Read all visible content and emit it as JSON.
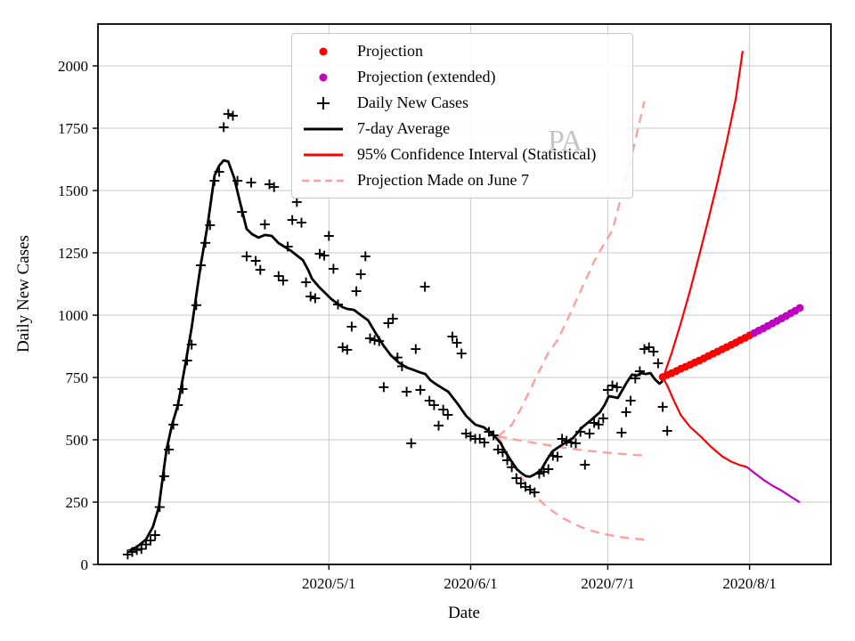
{
  "watermark": "PA",
  "colors": {
    "projection": "#ff0000",
    "projection_extended": "#bf00bf",
    "daily_cases": "#000000",
    "average": "#000000",
    "confidence_interval": "#ff0000",
    "june7_projection": "#ff9f9f",
    "grid": "#c9c9c9",
    "spine": "#000000",
    "watermark_gray": "#c6c6c6"
  },
  "axes": {
    "xlabel": "Date",
    "ylabel": "Daily New Cases",
    "x_origin_date": "2020-03-18",
    "xlim_days": [
      -6.5,
      153.8
    ],
    "ylim": [
      0,
      2168
    ],
    "x_ticks": [
      {
        "day": 44,
        "label": "2020/5/1"
      },
      {
        "day": 75,
        "label": "2020/6/1"
      },
      {
        "day": 105,
        "label": "2020/7/1"
      },
      {
        "day": 136,
        "label": "2020/8/1"
      }
    ],
    "y_ticks": [
      {
        "value": 0,
        "label": "0"
      },
      {
        "value": 250,
        "label": "250"
      },
      {
        "value": 500,
        "label": "500"
      },
      {
        "value": 750,
        "label": "750"
      },
      {
        "value": 1000,
        "label": "1000"
      },
      {
        "value": 1250,
        "label": "1250"
      },
      {
        "value": 1500,
        "label": "1500"
      },
      {
        "value": 1750,
        "label": "1750"
      },
      {
        "value": 2000,
        "label": "2000"
      }
    ]
  },
  "legend": {
    "items": [
      {
        "label": "Projection",
        "marker": "dot",
        "color": "#ff0000"
      },
      {
        "label": "Projection (extended)",
        "marker": "dot",
        "color": "#bf00bf"
      },
      {
        "label": "Daily New Cases",
        "marker": "plus",
        "color": "#000000"
      },
      {
        "label": "7-day Average",
        "marker": "line",
        "color": "#000000"
      },
      {
        "label": "95% Confidence Interval (Statistical)",
        "marker": "line",
        "color": "#ff0000"
      },
      {
        "label": "Projection Made on June 7",
        "marker": "dash",
        "color": "#ff9f9f"
      }
    ]
  },
  "chart_data": {
    "type": "line",
    "title": "",
    "xlabel": "Date",
    "ylabel": "Daily New Cases",
    "grid": true,
    "legend_position": "upper center",
    "x_unit": "days since 2020-03-18",
    "series": [
      {
        "name": "Projection Made on June 7 (upper band)",
        "style": "dashed",
        "color": "#ff9f9f",
        "width": 2.4,
        "points": [
          [
            81,
            514
          ],
          [
            84,
            560
          ],
          [
            86,
            625
          ],
          [
            88,
            700
          ],
          [
            90,
            775
          ],
          [
            92,
            850
          ],
          [
            94,
            900
          ],
          [
            96,
            975
          ],
          [
            98,
            1055
          ],
          [
            100,
            1135
          ],
          [
            102,
            1215
          ],
          [
            104,
            1280
          ],
          [
            106,
            1340
          ],
          [
            108,
            1480
          ],
          [
            110,
            1620
          ],
          [
            111.5,
            1740
          ],
          [
            113,
            1858
          ]
        ]
      },
      {
        "name": "Projection Made on June 7 (central)",
        "style": "dashed",
        "color": "#ff9f9f",
        "width": 2.4,
        "points": [
          [
            81,
            514
          ],
          [
            85,
            500
          ],
          [
            89,
            487
          ],
          [
            93,
            475
          ],
          [
            97,
            464
          ],
          [
            101,
            455
          ],
          [
            105,
            448
          ],
          [
            109,
            442
          ],
          [
            113.5,
            436
          ]
        ]
      },
      {
        "name": "Projection Made on June 7 (lower band)",
        "style": "dashed",
        "color": "#ff9f9f",
        "width": 2.4,
        "points": [
          [
            81,
            514
          ],
          [
            83,
            445
          ],
          [
            85,
            382
          ],
          [
            87,
            325
          ],
          [
            89,
            278
          ],
          [
            91,
            242
          ],
          [
            93,
            213
          ],
          [
            95,
            188
          ],
          [
            97,
            168
          ],
          [
            99,
            151
          ],
          [
            101,
            138
          ],
          [
            103,
            127
          ],
          [
            105,
            119
          ],
          [
            107,
            112
          ],
          [
            109,
            107
          ],
          [
            111,
            103
          ],
          [
            113,
            100
          ]
        ]
      },
      {
        "name": "95% Confidence Interval upper",
        "style": "line",
        "color": "#ff0000",
        "width": 2.2,
        "points": [
          [
            117.3,
            760
          ],
          [
            119,
            850
          ],
          [
            121,
            970
          ],
          [
            123,
            1100
          ],
          [
            125,
            1240
          ],
          [
            127,
            1385
          ],
          [
            129,
            1535
          ],
          [
            131,
            1695
          ],
          [
            133,
            1870
          ],
          [
            134.5,
            2060
          ]
        ]
      },
      {
        "name": "95% Confidence Interval lower",
        "style": "line",
        "color": "#ff0000",
        "width": 2.2,
        "points": [
          [
            117.3,
            740
          ],
          [
            118,
            718
          ],
          [
            119.5,
            655
          ],
          [
            121,
            598
          ],
          [
            123,
            552
          ],
          [
            125.5,
            510
          ],
          [
            127.5,
            473
          ],
          [
            130,
            434
          ],
          [
            132,
            412
          ],
          [
            134,
            398
          ],
          [
            135.4,
            391
          ]
        ]
      },
      {
        "name": "95% Confidence Interval lower (extended)",
        "style": "line",
        "color": "#bf00bf",
        "width": 2.2,
        "points": [
          [
            135.4,
            391
          ],
          [
            137,
            368
          ],
          [
            139,
            340
          ],
          [
            141,
            316
          ],
          [
            143,
            296
          ],
          [
            145,
            272
          ],
          [
            147,
            249
          ]
        ]
      },
      {
        "name": "7-day Average",
        "style": "line",
        "color": "#000000",
        "width": 2.8,
        "points": [
          [
            0.3,
            55
          ],
          [
            2,
            70
          ],
          [
            4,
            100
          ],
          [
            5.5,
            150
          ],
          [
            6.8,
            229
          ],
          [
            7.7,
            354
          ],
          [
            8.5,
            461
          ],
          [
            9.7,
            561
          ],
          [
            11,
            640
          ],
          [
            12.5,
            790
          ],
          [
            14,
            950
          ],
          [
            15,
            1080
          ],
          [
            16,
            1204
          ],
          [
            17.5,
            1364
          ],
          [
            19,
            1560
          ],
          [
            20,
            1600
          ],
          [
            21,
            1621
          ],
          [
            22,
            1616
          ],
          [
            23.3,
            1550
          ],
          [
            24.7,
            1443
          ],
          [
            26,
            1346
          ],
          [
            27.2,
            1325
          ],
          [
            28.6,
            1311
          ],
          [
            30,
            1322
          ],
          [
            31.5,
            1318
          ],
          [
            33,
            1289
          ],
          [
            35.8,
            1257
          ],
          [
            38.3,
            1221
          ],
          [
            39.5,
            1180
          ],
          [
            40.3,
            1146
          ],
          [
            42,
            1110
          ],
          [
            42.8,
            1096
          ],
          [
            44.5,
            1065
          ],
          [
            45.6,
            1050
          ],
          [
            47,
            1032
          ],
          [
            48,
            1025
          ],
          [
            49.5,
            1021
          ],
          [
            51,
            1000
          ],
          [
            52.6,
            979
          ],
          [
            54,
            935
          ],
          [
            55.9,
            879
          ],
          [
            57.5,
            840
          ],
          [
            59.2,
            811
          ],
          [
            61,
            790
          ],
          [
            62.3,
            782
          ],
          [
            64,
            770
          ],
          [
            65.1,
            764
          ],
          [
            66.2,
            739
          ],
          [
            67.6,
            721
          ],
          [
            69,
            705
          ],
          [
            70.1,
            693
          ],
          [
            72.1,
            646
          ],
          [
            74,
            596
          ],
          [
            76,
            561
          ],
          [
            77.9,
            550
          ],
          [
            79.9,
            521
          ],
          [
            81.6,
            486
          ],
          [
            82.6,
            450
          ],
          [
            83.8,
            418
          ],
          [
            85.1,
            382
          ],
          [
            86,
            368
          ],
          [
            87.1,
            354
          ],
          [
            88,
            352
          ],
          [
            89,
            361
          ],
          [
            90.4,
            379
          ],
          [
            91.6,
            418
          ],
          [
            92.9,
            454
          ],
          [
            94.3,
            471
          ],
          [
            95.5,
            486
          ],
          [
            97.4,
            507
          ],
          [
            99.4,
            550
          ],
          [
            101.3,
            579
          ],
          [
            103.3,
            611
          ],
          [
            104.3,
            640
          ],
          [
            105.2,
            675
          ],
          [
            106.2,
            672
          ],
          [
            107.2,
            668
          ],
          [
            108.2,
            700
          ],
          [
            109.1,
            729
          ],
          [
            110.3,
            762
          ],
          [
            111.3,
            757
          ],
          [
            112.3,
            768
          ],
          [
            113.3,
            764
          ],
          [
            114.3,
            768
          ],
          [
            115.3,
            743
          ],
          [
            116.3,
            725
          ],
          [
            117,
            736
          ]
        ]
      },
      {
        "name": "Daily New Cases",
        "style": "plus",
        "color": "#000000",
        "marker_size": 5.5,
        "start_day": 0,
        "values": [
          40,
          50,
          58,
          62,
          80,
          96,
          118,
          230,
          354,
          461,
          561,
          639,
          704,
          818,
          882,
          1040,
          1200,
          1290,
          1361,
          1539,
          1575,
          1754,
          1807,
          1800,
          1539,
          1414,
          1236,
          1532,
          1218,
          1182,
          1364,
          1525,
          1514,
          1157,
          1139,
          1275,
          1382,
          1454,
          1371,
          1132,
          1075,
          1068,
          1246,
          1239,
          1318,
          1186,
          1043,
          871,
          861,
          954,
          1096,
          1164,
          1236,
          907,
          900,
          896,
          711,
          968,
          986,
          830,
          795,
          693,
          486,
          864,
          700,
          1114,
          657,
          639,
          557,
          621,
          600,
          914,
          889,
          846,
          525,
          514,
          504,
          504,
          489,
          532,
          518,
          461,
          450,
          418,
          390,
          346,
          325,
          311,
          300,
          289,
          364,
          371,
          382,
          436,
          432,
          504,
          496,
          489,
          486,
          532,
          400,
          525,
          568,
          561,
          586,
          700,
          718,
          711,
          529,
          611,
          657,
          746,
          775,
          864,
          871,
          854,
          807,
          632,
          536
        ]
      },
      {
        "name": "Projection",
        "style": "dots",
        "color": "#ff0000",
        "radius": 4.4,
        "points": [
          [
            117,
            752
          ],
          [
            118,
            760
          ],
          [
            119,
            768
          ],
          [
            120,
            776
          ],
          [
            121,
            785
          ],
          [
            122,
            793
          ],
          [
            123,
            801
          ],
          [
            124,
            810
          ],
          [
            125,
            818
          ],
          [
            126,
            827
          ],
          [
            127,
            836
          ],
          [
            128,
            845
          ],
          [
            129,
            854
          ],
          [
            130,
            863
          ],
          [
            131,
            872
          ],
          [
            132,
            881
          ],
          [
            133,
            890
          ],
          [
            134,
            900
          ],
          [
            135,
            909
          ],
          [
            136,
            919
          ]
        ]
      },
      {
        "name": "Projection (extended)",
        "style": "dots",
        "color": "#bf00bf",
        "radius": 4.4,
        "points": [
          [
            137,
            928
          ],
          [
            138,
            938
          ],
          [
            139,
            947
          ],
          [
            140,
            957
          ],
          [
            141,
            967
          ],
          [
            142,
            977
          ],
          [
            143,
            987
          ],
          [
            144,
            997
          ],
          [
            145,
            1008
          ],
          [
            146,
            1018
          ],
          [
            147,
            1029
          ]
        ]
      }
    ]
  }
}
